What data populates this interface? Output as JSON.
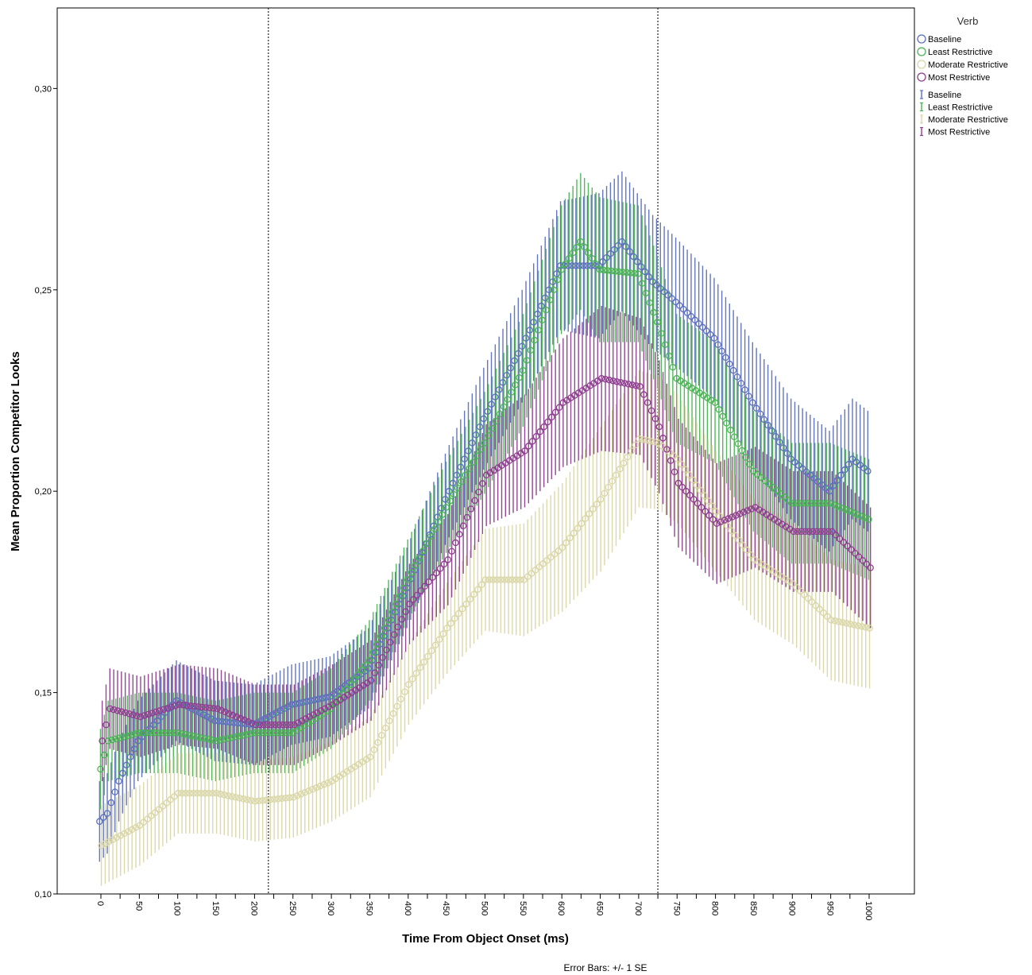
{
  "chart_data": {
    "type": "scatter",
    "xlabel": "Time From Object Onset (ms)",
    "ylabel": "Mean Proportion Competitor Looks",
    "xlim": [
      -5,
      1005
    ],
    "ylim": [
      0.1,
      0.32
    ],
    "x_ticks": [
      0,
      50,
      100,
      150,
      200,
      250,
      300,
      350,
      400,
      450,
      500,
      550,
      600,
      650,
      700,
      750,
      800,
      850,
      900,
      950,
      1000
    ],
    "y_ticks": [
      0.1,
      0.15,
      0.2,
      0.25,
      0.3
    ],
    "y_tick_labels": [
      "0,10",
      "0,15",
      "0,20",
      "0,25",
      "0,30"
    ],
    "x_step_ms": 5,
    "reference_lines_x": [
      218,
      725
    ],
    "legend_title": "Verb",
    "legend_position": "right",
    "footnote": "Error Bars: +/- 1 SE",
    "series": [
      {
        "name": "Baseline",
        "color": "#5b6fbe",
        "anchors": [
          [
            0,
            0.118
          ],
          [
            10,
            0.12
          ],
          [
            25,
            0.128
          ],
          [
            50,
            0.138
          ],
          [
            100,
            0.148
          ],
          [
            150,
            0.143
          ],
          [
            200,
            0.142
          ],
          [
            250,
            0.147
          ],
          [
            300,
            0.149
          ],
          [
            350,
            0.156
          ],
          [
            400,
            0.176
          ],
          [
            450,
            0.198
          ],
          [
            500,
            0.218
          ],
          [
            550,
            0.236
          ],
          [
            600,
            0.256
          ],
          [
            650,
            0.256
          ],
          [
            680,
            0.262
          ],
          [
            720,
            0.252
          ],
          [
            750,
            0.247
          ],
          [
            800,
            0.238
          ],
          [
            850,
            0.222
          ],
          [
            900,
            0.208
          ],
          [
            950,
            0.2
          ],
          [
            980,
            0.208
          ],
          [
            1000,
            0.205
          ]
        ],
        "se": [
          [
            0,
            0.01
          ],
          [
            200,
            0.01
          ],
          [
            400,
            0.01
          ],
          [
            550,
            0.014
          ],
          [
            650,
            0.018
          ],
          [
            700,
            0.017
          ],
          [
            800,
            0.015
          ],
          [
            1000,
            0.015
          ]
        ]
      },
      {
        "name": "Least Restrictive",
        "color": "#4ab354",
        "anchors": [
          [
            0,
            0.131
          ],
          [
            10,
            0.138
          ],
          [
            50,
            0.14
          ],
          [
            100,
            0.14
          ],
          [
            150,
            0.138
          ],
          [
            200,
            0.14
          ],
          [
            250,
            0.14
          ],
          [
            300,
            0.146
          ],
          [
            350,
            0.158
          ],
          [
            400,
            0.178
          ],
          [
            450,
            0.196
          ],
          [
            500,
            0.212
          ],
          [
            550,
            0.23
          ],
          [
            600,
            0.255
          ],
          [
            625,
            0.262
          ],
          [
            650,
            0.255
          ],
          [
            700,
            0.254
          ],
          [
            725,
            0.242
          ],
          [
            750,
            0.228
          ],
          [
            800,
            0.222
          ],
          [
            850,
            0.205
          ],
          [
            900,
            0.197
          ],
          [
            950,
            0.197
          ],
          [
            1000,
            0.193
          ]
        ],
        "se": [
          [
            0,
            0.01
          ],
          [
            200,
            0.01
          ],
          [
            400,
            0.01
          ],
          [
            550,
            0.014
          ],
          [
            650,
            0.018
          ],
          [
            700,
            0.017
          ],
          [
            800,
            0.015
          ],
          [
            1000,
            0.015
          ]
        ]
      },
      {
        "name": "Moderate Restrictive",
        "color": "#d9d6a6",
        "anchors": [
          [
            0,
            0.112
          ],
          [
            50,
            0.117
          ],
          [
            100,
            0.125
          ],
          [
            150,
            0.125
          ],
          [
            200,
            0.123
          ],
          [
            250,
            0.124
          ],
          [
            300,
            0.128
          ],
          [
            350,
            0.134
          ],
          [
            400,
            0.152
          ],
          [
            450,
            0.166
          ],
          [
            500,
            0.178
          ],
          [
            550,
            0.178
          ],
          [
            600,
            0.186
          ],
          [
            650,
            0.198
          ],
          [
            700,
            0.213
          ],
          [
            725,
            0.212
          ],
          [
            750,
            0.208
          ],
          [
            800,
            0.195
          ],
          [
            850,
            0.183
          ],
          [
            900,
            0.177
          ],
          [
            950,
            0.168
          ],
          [
            1000,
            0.166
          ]
        ],
        "se": [
          [
            0,
            0.01
          ],
          [
            200,
            0.01
          ],
          [
            400,
            0.01
          ],
          [
            550,
            0.014
          ],
          [
            650,
            0.018
          ],
          [
            700,
            0.017
          ],
          [
            800,
            0.015
          ],
          [
            1000,
            0.015
          ]
        ]
      },
      {
        "name": "Most Restrictive",
        "color": "#8e3d8f",
        "anchors": [
          [
            0,
            0.138
          ],
          [
            10,
            0.146
          ],
          [
            50,
            0.144
          ],
          [
            100,
            0.147
          ],
          [
            150,
            0.146
          ],
          [
            200,
            0.142
          ],
          [
            250,
            0.142
          ],
          [
            300,
            0.147
          ],
          [
            350,
            0.153
          ],
          [
            400,
            0.172
          ],
          [
            450,
            0.183
          ],
          [
            500,
            0.204
          ],
          [
            550,
            0.21
          ],
          [
            600,
            0.222
          ],
          [
            650,
            0.228
          ],
          [
            700,
            0.226
          ],
          [
            725,
            0.216
          ],
          [
            750,
            0.202
          ],
          [
            800,
            0.192
          ],
          [
            850,
            0.196
          ],
          [
            900,
            0.19
          ],
          [
            950,
            0.19
          ],
          [
            1000,
            0.181
          ]
        ],
        "se": [
          [
            0,
            0.01
          ],
          [
            200,
            0.01
          ],
          [
            400,
            0.01
          ],
          [
            550,
            0.014
          ],
          [
            650,
            0.018
          ],
          [
            700,
            0.017
          ],
          [
            800,
            0.015
          ],
          [
            1000,
            0.015
          ]
        ]
      }
    ]
  }
}
